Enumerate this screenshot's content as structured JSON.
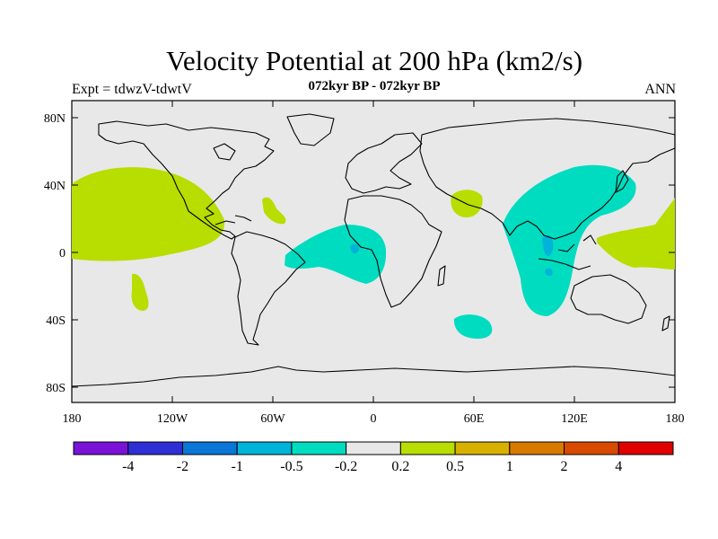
{
  "map": {
    "title": "Velocity Potential at 200 hPa (km2/s)",
    "left_label": "Expt = tdwzV-tdwtV",
    "center_label": "072kyr BP - 072kyr BP",
    "right_label": "ANN",
    "y_ticks": [
      "80N",
      "40N",
      "0",
      "40S",
      "80S"
    ],
    "x_ticks": [
      "180",
      "120W",
      "60W",
      "0",
      "60E",
      "120E",
      "180"
    ],
    "background_color": "#e8e8e8",
    "colorbar": {
      "colors": [
        "#7b12d8",
        "#2f2fd6",
        "#0a76d8",
        "#00b3d9",
        "#00dcc0",
        "#e8e8e8",
        "#b8dd00",
        "#d8b000",
        "#d87a00",
        "#d84a00",
        "#e00000"
      ],
      "labels": [
        "-4",
        "-2",
        "-1",
        "-0.5",
        "-0.2",
        "0.2",
        "0.5",
        "1",
        "2",
        "4"
      ]
    }
  }
}
